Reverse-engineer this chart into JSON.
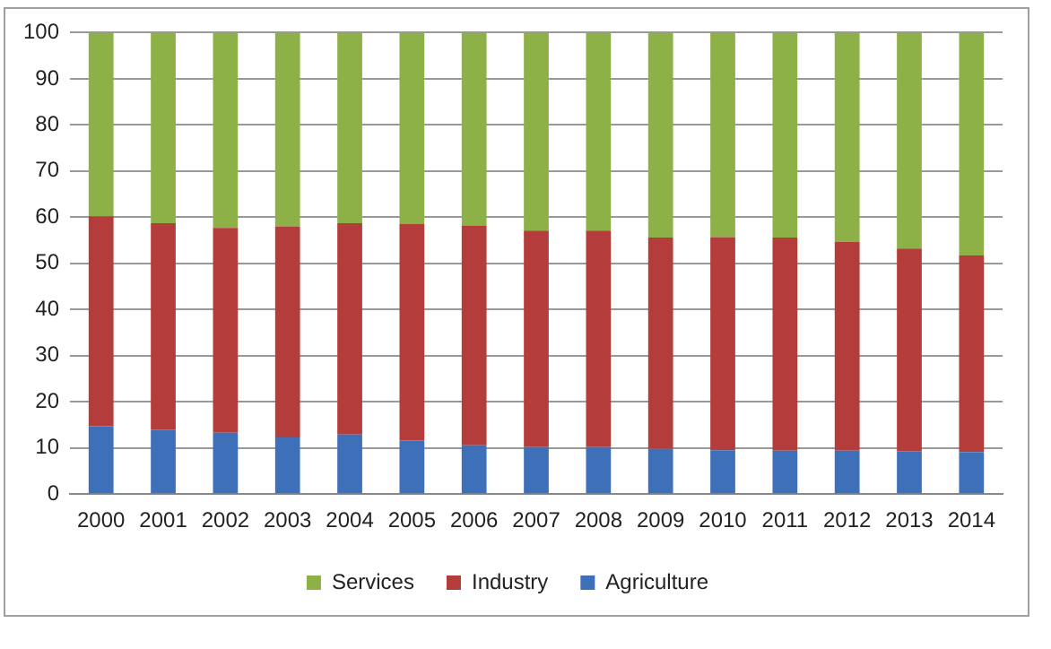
{
  "chart_data": {
    "type": "bar",
    "stacked": true,
    "categories": [
      "2000",
      "2001",
      "2002",
      "2003",
      "2004",
      "2005",
      "2006",
      "2007",
      "2008",
      "2009",
      "2010",
      "2011",
      "2012",
      "2013",
      "2014"
    ],
    "series": [
      {
        "name": "Agriculture",
        "color": "#3d70b8",
        "values": [
          14.7,
          14.0,
          13.3,
          12.3,
          12.9,
          11.6,
          10.6,
          10.2,
          10.2,
          9.8,
          9.5,
          9.4,
          9.4,
          9.3,
          9.1
        ]
      },
      {
        "name": "Industry",
        "color": "#b43d3b",
        "values": [
          45.5,
          44.7,
          44.4,
          45.7,
          45.8,
          47.0,
          47.6,
          46.9,
          46.9,
          45.8,
          46.2,
          46.2,
          45.2,
          43.9,
          42.6
        ]
      },
      {
        "name": "Services",
        "color": "#8db146",
        "values": [
          39.8,
          41.3,
          42.3,
          42.0,
          41.3,
          41.4,
          41.8,
          42.9,
          42.9,
          44.4,
          44.3,
          44.4,
          45.4,
          46.8,
          48.3
        ]
      }
    ],
    "ylim": [
      0,
      100
    ],
    "yticks": [
      0,
      10,
      20,
      30,
      40,
      50,
      60,
      70,
      80,
      90,
      100
    ],
    "grid": "y",
    "legend": "bottom"
  }
}
